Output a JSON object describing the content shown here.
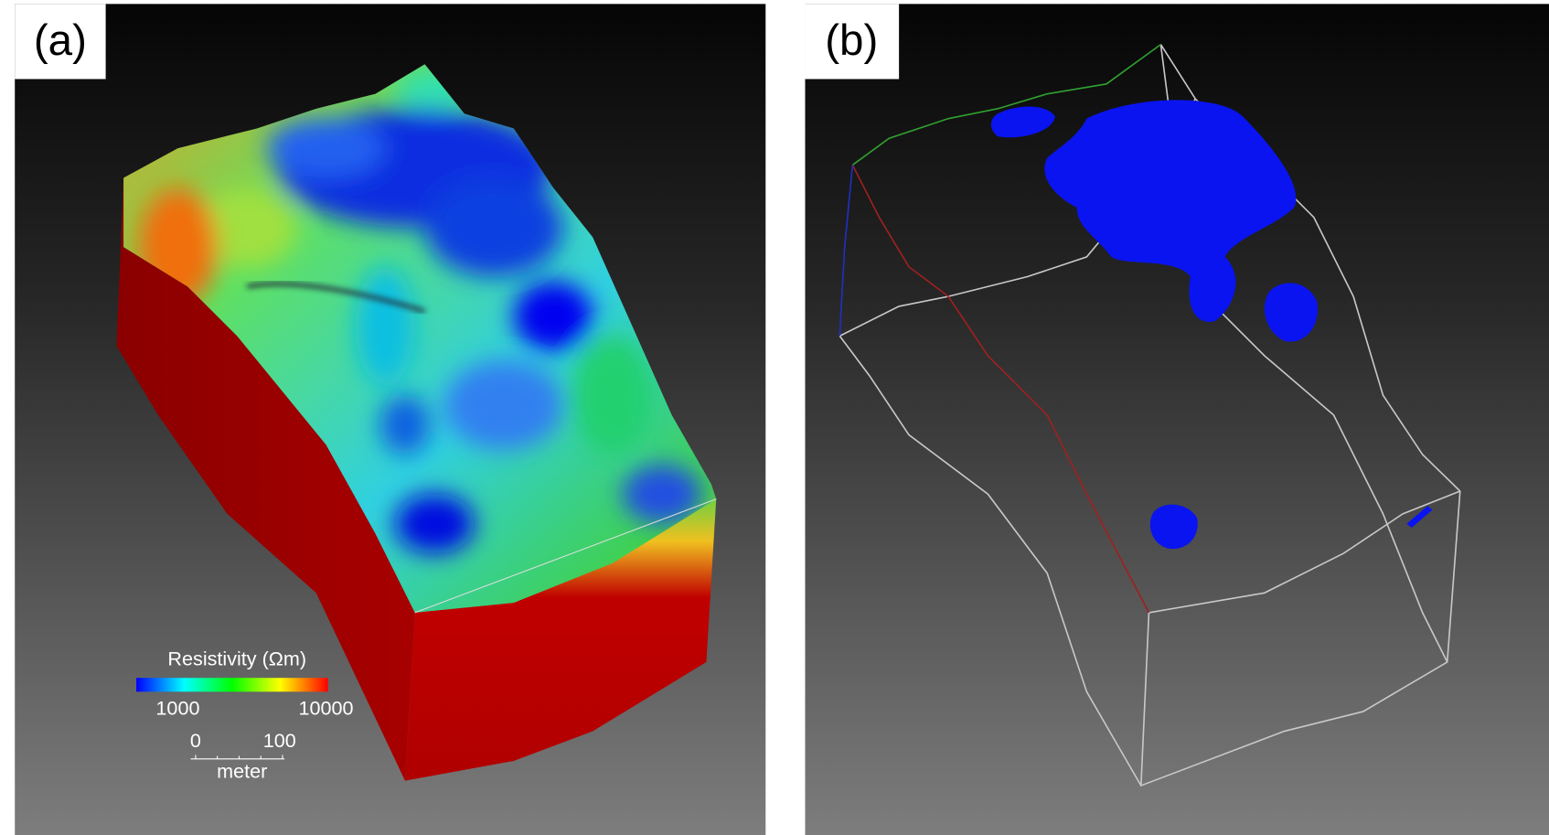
{
  "panels": [
    {
      "label": "(a)",
      "colorbar": {
        "title": "Resistivity (Ωm)",
        "ticks": [
          1000,
          10000
        ]
      },
      "scale_bar": {
        "ticks": [
          0,
          100
        ],
        "unit": "meter"
      }
    },
    {
      "label": "(b)"
    }
  ]
}
